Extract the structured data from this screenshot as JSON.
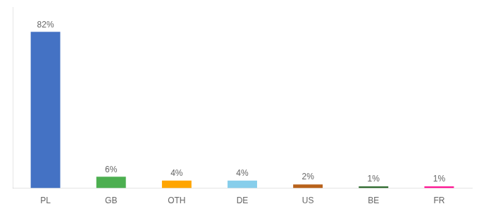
{
  "chart_data": {
    "type": "bar",
    "categories": [
      "PL",
      "GB",
      "OTH",
      "DE",
      "US",
      "BE",
      "FR"
    ],
    "values": [
      82,
      6,
      4,
      4,
      2,
      1,
      1
    ],
    "value_labels": [
      "82%",
      "6%",
      "4%",
      "4%",
      "2%",
      "1%",
      "1%"
    ],
    "colors": [
      "#4472C4",
      "#4CAF50",
      "#FFA500",
      "#87CEEB",
      "#B8621B",
      "#2D6A2D",
      "#FF1493"
    ],
    "ylim": [
      0,
      95
    ],
    "grid": false,
    "data_labels": true,
    "tick_labels": "x"
  }
}
